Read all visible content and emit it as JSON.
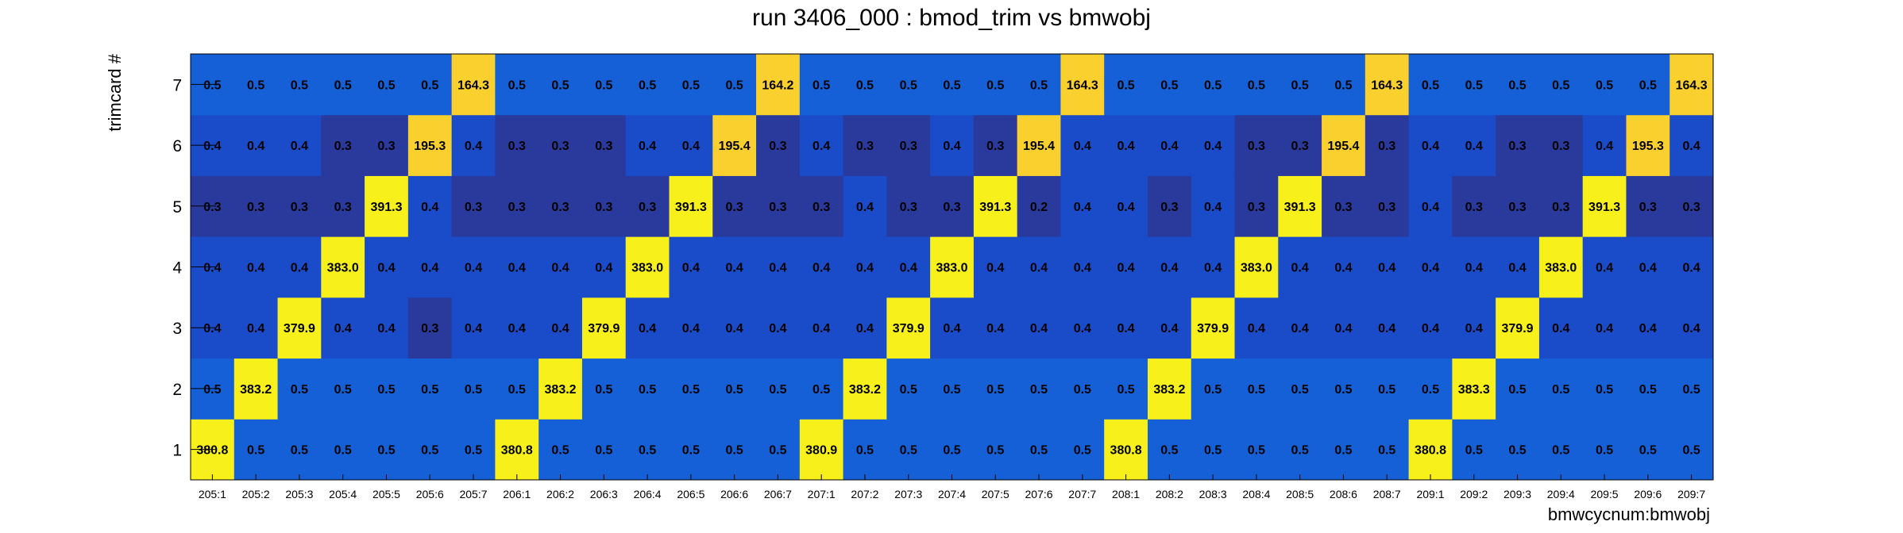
{
  "chart_data": {
    "type": "heatmap",
    "title": "run 3406_000 : bmod_trim vs bmwobj",
    "xlabel": "bmwcycnum:bmwobj",
    "ylabel": "trimcard #",
    "x_categories": [
      "205:1",
      "205:2",
      "205:3",
      "205:4",
      "205:5",
      "205:6",
      "205:7",
      "206:1",
      "206:2",
      "206:3",
      "206:4",
      "206:5",
      "206:6",
      "206:7",
      "207:1",
      "207:2",
      "207:3",
      "207:4",
      "207:5",
      "207:6",
      "207:7",
      "208:1",
      "208:2",
      "208:3",
      "208:4",
      "208:5",
      "208:6",
      "208:7",
      "209:1",
      "209:2",
      "209:3",
      "209:4",
      "209:5",
      "209:6",
      "209:7"
    ],
    "y_categories": [
      "1",
      "2",
      "3",
      "4",
      "5",
      "6",
      "7"
    ],
    "values": [
      [
        380.8,
        0.5,
        0.5,
        0.5,
        0.5,
        0.5,
        0.5,
        380.8,
        0.5,
        0.5,
        0.5,
        0.5,
        0.5,
        0.5,
        380.9,
        0.5,
        0.5,
        0.5,
        0.5,
        0.5,
        0.5,
        380.8,
        0.5,
        0.5,
        0.5,
        0.5,
        0.5,
        0.5,
        380.8,
        0.5,
        0.5,
        0.5,
        0.5,
        0.5,
        0.5
      ],
      [
        0.5,
        383.2,
        0.5,
        0.5,
        0.5,
        0.5,
        0.5,
        0.5,
        383.2,
        0.5,
        0.5,
        0.5,
        0.5,
        0.5,
        0.5,
        383.2,
        0.5,
        0.5,
        0.5,
        0.5,
        0.5,
        0.5,
        383.2,
        0.5,
        0.5,
        0.5,
        0.5,
        0.5,
        0.5,
        383.3,
        0.5,
        0.5,
        0.5,
        0.5,
        0.5
      ],
      [
        0.4,
        0.4,
        379.9,
        0.4,
        0.4,
        0.3,
        0.4,
        0.4,
        0.4,
        379.9,
        0.4,
        0.4,
        0.4,
        0.4,
        0.4,
        0.4,
        379.9,
        0.4,
        0.4,
        0.4,
        0.4,
        0.4,
        0.4,
        379.9,
        0.4,
        0.4,
        0.4,
        0.4,
        0.4,
        0.4,
        379.9,
        0.4,
        0.4,
        0.4,
        0.4
      ],
      [
        0.4,
        0.4,
        0.4,
        383.0,
        0.4,
        0.4,
        0.4,
        0.4,
        0.4,
        0.4,
        383.0,
        0.4,
        0.4,
        0.4,
        0.4,
        0.4,
        0.4,
        383.0,
        0.4,
        0.4,
        0.4,
        0.4,
        0.4,
        0.4,
        383.0,
        0.4,
        0.4,
        0.4,
        0.4,
        0.4,
        0.4,
        383.0,
        0.4,
        0.4,
        0.4
      ],
      [
        0.3,
        0.3,
        0.3,
        0.3,
        391.3,
        0.4,
        0.3,
        0.3,
        0.3,
        0.3,
        0.3,
        391.3,
        0.3,
        0.3,
        0.3,
        0.4,
        0.3,
        0.3,
        391.3,
        0.2,
        0.4,
        0.4,
        0.3,
        0.4,
        0.3,
        391.3,
        0.3,
        0.3,
        0.4,
        0.3,
        0.3,
        0.3,
        391.3,
        0.3,
        0.3
      ],
      [
        0.4,
        0.4,
        0.4,
        0.3,
        0.3,
        195.3,
        0.4,
        0.3,
        0.3,
        0.3,
        0.4,
        0.4,
        195.4,
        0.3,
        0.4,
        0.3,
        0.3,
        0.4,
        0.3,
        195.4,
        0.4,
        0.4,
        0.4,
        0.4,
        0.3,
        0.3,
        195.4,
        0.3,
        0.4,
        0.4,
        0.3,
        0.3,
        0.4,
        195.3,
        0.4
      ],
      [
        0.5,
        0.5,
        0.5,
        0.5,
        0.5,
        0.5,
        164.3,
        0.5,
        0.5,
        0.5,
        0.5,
        0.5,
        0.5,
        164.2,
        0.5,
        0.5,
        0.5,
        0.5,
        0.5,
        0.5,
        164.3,
        0.5,
        0.5,
        0.5,
        0.5,
        0.5,
        0.5,
        164.3,
        0.5,
        0.5,
        0.5,
        0.5,
        0.5,
        0.5,
        164.3
      ]
    ],
    "grid": false,
    "colors": {
      "high_peak": "#f7f01a",
      "mid_peak": "#f9d02e",
      "low_mid": "#1560d6",
      "low": "#1a4bc8",
      "lowest": "#2a3a9c",
      "frame": "#000000"
    }
  }
}
